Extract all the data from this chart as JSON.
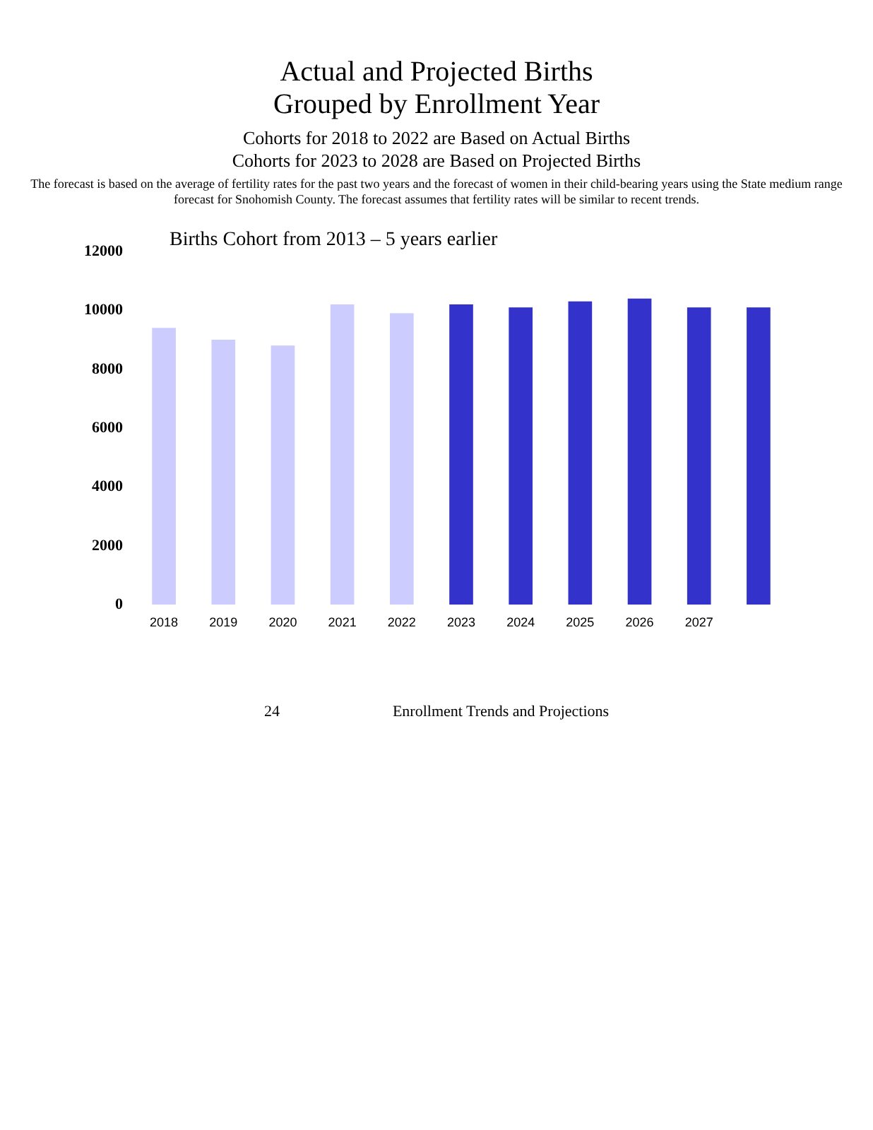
{
  "chart_data": {
    "type": "bar",
    "title": "Actual and Projected Births\nGrouped by Enrollment Year",
    "subtitle": "Cohorts for 2018 to 2022 are Based on Actual Births\nCohorts for 2023 to 2028 are Based on Projected Births",
    "annotations": [
      "The forecast is based on the average of fertility rates for the past two years and the forecast of women in their child-bearing years using the State medium range forecast for Snohomish County. The forecast assumes that fertility rates will be similar to recent trends.",
      "Births Cohort from 2013 – 5 years earlier",
      "24",
      "Enrollment Trends and Projections"
    ],
    "categories": [
      "2018",
      "2019",
      "2020",
      "2021",
      "2022",
      "2023",
      "2024",
      "2025",
      "2026",
      "2027",
      null
    ],
    "values": [
      9400,
      9000,
      8800,
      10200,
      9900,
      10200,
      10100,
      10300,
      10400,
      10100,
      10100
    ],
    "colors": [
      "#ccccff",
      "#ccccff",
      "#ccccff",
      "#ccccff",
      "#ccccff",
      "#3333cc",
      "#3333cc",
      "#3333cc",
      "#3333cc",
      "#3333cc",
      "#3333cc"
    ],
    "ylim": [
      0,
      12000
    ],
    "yticks": [
      0,
      2000,
      4000,
      6000,
      8000,
      10000,
      12000
    ],
    "grid": false
  }
}
